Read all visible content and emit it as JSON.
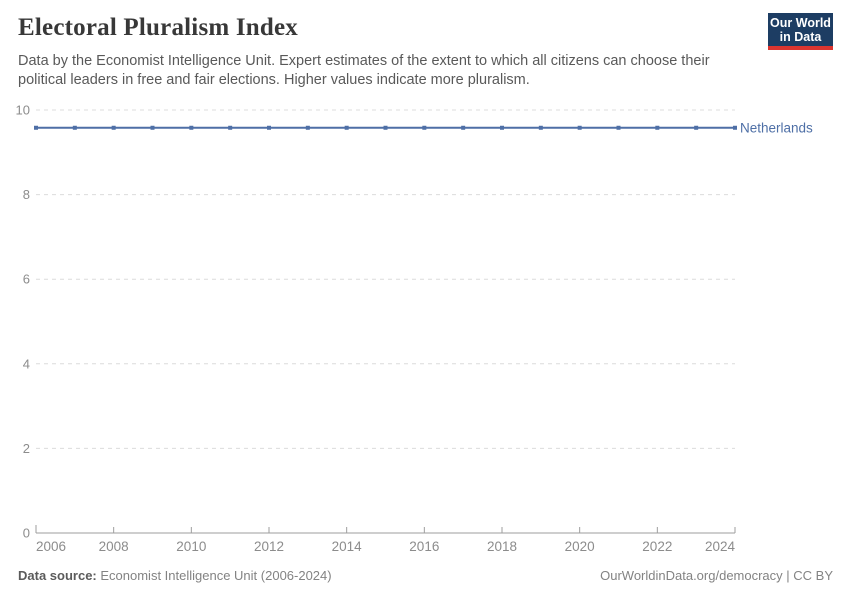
{
  "header": {
    "title": "Electoral Pluralism Index",
    "subtitle": "Data by the Economist Intelligence Unit. Expert estimates of the extent to which all citizens can choose their political leaders in free and fair elections. Higher values indicate more pluralism."
  },
  "logo": {
    "line1": "Our World",
    "line2": "in Data",
    "bg_color": "#1d3d63",
    "bar_color": "#dc352f"
  },
  "chart_data": {
    "type": "line",
    "title": "Electoral Pluralism Index",
    "x": [
      2006,
      2007,
      2008,
      2009,
      2010,
      2011,
      2012,
      2013,
      2014,
      2015,
      2016,
      2017,
      2018,
      2019,
      2020,
      2021,
      2022,
      2023,
      2024
    ],
    "series": [
      {
        "name": "Netherlands",
        "color": "#4e6fa6",
        "values": [
          9.58,
          9.58,
          9.58,
          9.58,
          9.58,
          9.58,
          9.58,
          9.58,
          9.58,
          9.58,
          9.58,
          9.58,
          9.58,
          9.58,
          9.58,
          9.58,
          9.58,
          9.58,
          9.58
        ]
      }
    ],
    "xlabel": "",
    "ylabel": "",
    "ylim": [
      0,
      10
    ],
    "yticks": [
      0,
      2,
      4,
      6,
      8,
      10
    ],
    "xticks": [
      2006,
      2008,
      2010,
      2012,
      2014,
      2016,
      2018,
      2020,
      2022,
      2024
    ],
    "grid": "horizontal-dashed",
    "legend_position": "inline-right",
    "axis_text_color": "#8c8c8c",
    "grid_color": "#dcdcdc",
    "axis_line_color": "#9e9e9e"
  },
  "footer": {
    "source_label": "Data source:",
    "source_value": " Economist Intelligence Unit (2006-2024)",
    "credit": "OurWorldinData.org/democracy | CC BY"
  }
}
